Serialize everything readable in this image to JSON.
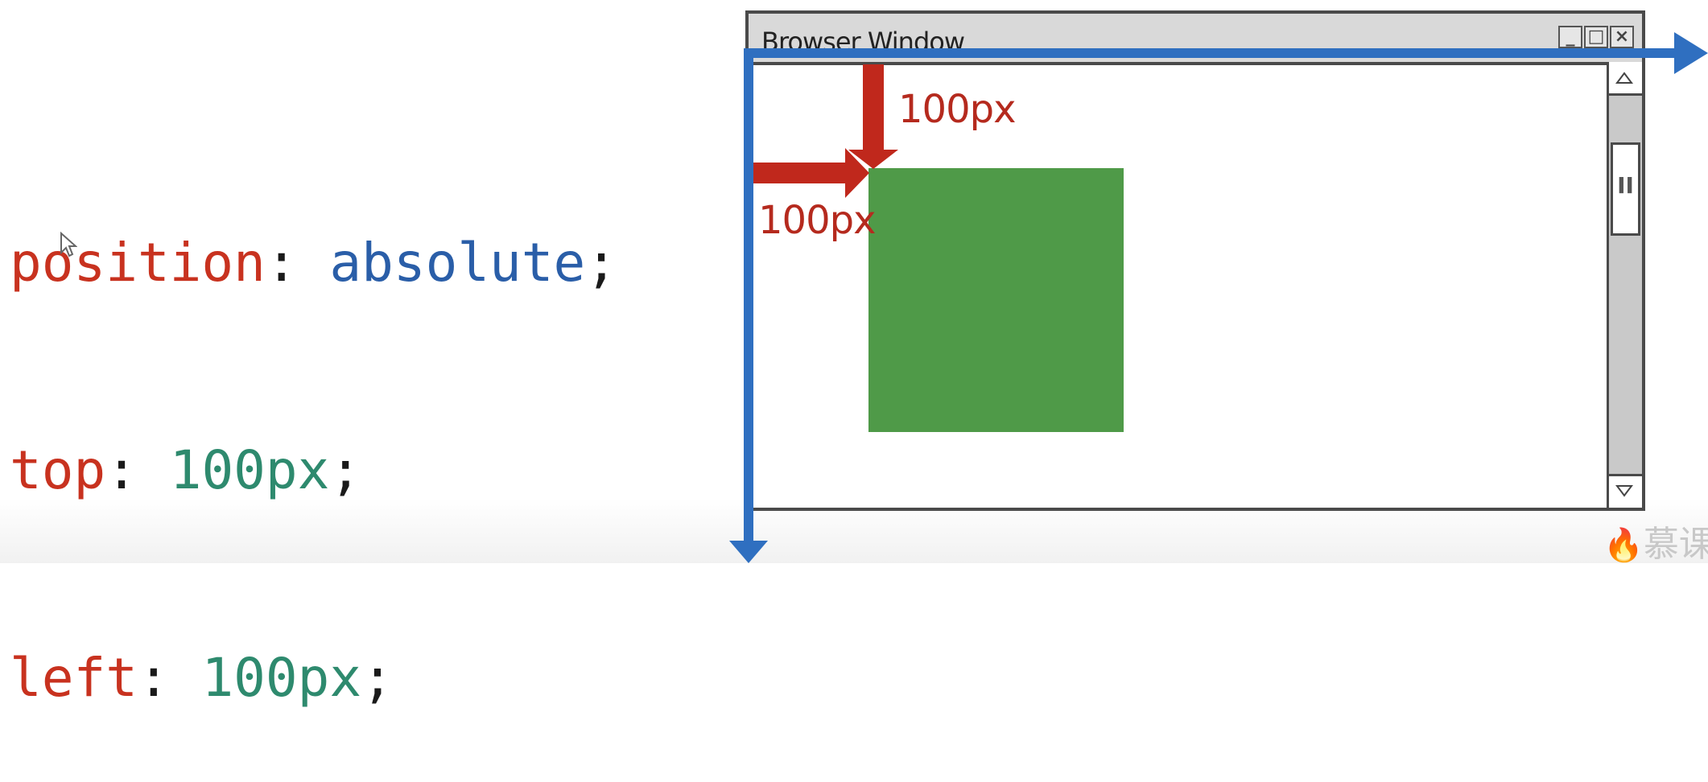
{
  "code": {
    "lines": [
      {
        "prop": "position",
        "sep": ": ",
        "value": "absolute",
        "end": ";"
      },
      {
        "prop": "top",
        "sep": ": ",
        "value": "100px",
        "end": ";"
      },
      {
        "prop": "left",
        "sep": ": ",
        "value": "100px",
        "end": ";"
      }
    ]
  },
  "window": {
    "title": "Browser Window",
    "buttons": [
      "_",
      "□",
      "×"
    ],
    "scroll_thumb_glyph": "II"
  },
  "labels": {
    "top_offset": "100px",
    "left_offset": "100px"
  },
  "watermark": "慕课网",
  "colors": {
    "property": "#c8321f",
    "keyword": "#2a5ea8",
    "number": "#2e8a6e",
    "axis_arrow": "#2f6fc0",
    "offset_arrow": "#c0281c",
    "box": "#4f9a48"
  },
  "icons": [
    "scroll-up-icon",
    "scroll-down-icon",
    "minimize-icon",
    "maximize-icon",
    "close-icon",
    "mouse-cursor-icon"
  ]
}
